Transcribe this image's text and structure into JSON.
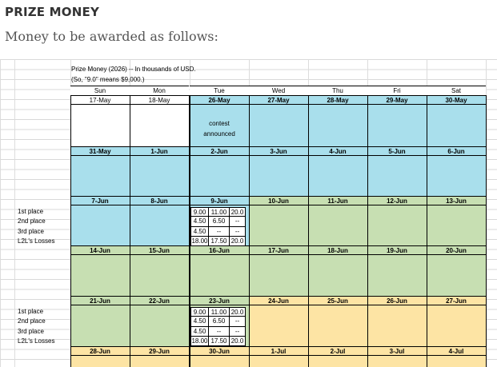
{
  "heading": "PRIZE MONEY",
  "subheading": "Money to be awarded as follows:",
  "sheet": {
    "note1": "Prize Money (2026) -- In thousands of USD.",
    "note2": "(So, \"9.0\" means $9,000.)",
    "days": [
      "Sun",
      "Mon",
      "Tue",
      "Wed",
      "Thu",
      "Fri",
      "Sat"
    ],
    "week0": [
      "17-May",
      "18-May",
      "26-May",
      "27-May",
      "28-May",
      "29-May",
      "30-May"
    ],
    "contest_text_1": "contest",
    "contest_text_2": "announced",
    "week1": [
      "31-May",
      "1-Jun",
      "2-Jun",
      "3-Jun",
      "4-Jun",
      "5-Jun",
      "6-Jun"
    ],
    "week2": [
      "7-Jun",
      "8-Jun",
      "9-Jun",
      "10-Jun",
      "11-Jun",
      "12-Jun",
      "13-Jun"
    ],
    "week3": [
      "14-Jun",
      "15-Jun",
      "16-Jun",
      "17-Jun",
      "18-Jun",
      "19-Jun",
      "20-Jun"
    ],
    "week4": [
      "21-Jun",
      "22-Jun",
      "23-Jun",
      "24-Jun",
      "25-Jun",
      "26-Jun",
      "27-Jun"
    ],
    "week5": [
      "28-Jun",
      "29-Jun",
      "30-Jun",
      "1-Jul",
      "2-Jul",
      "3-Jul",
      "4-Jul"
    ],
    "prize_labels": [
      "1st place",
      "2nd place",
      "3rd place",
      "L2L's Losses"
    ],
    "prize_table": [
      [
        "9.00",
        "11.00",
        "20.0"
      ],
      [
        "4.50",
        "6.50",
        "--"
      ],
      [
        "4.50",
        "--",
        "--"
      ],
      [
        "18.00",
        "17.50",
        "20.0"
      ]
    ],
    "colors": {
      "blue": "#a9dfec",
      "green": "#c7dfb2",
      "yellow": "#fde4a4"
    }
  }
}
